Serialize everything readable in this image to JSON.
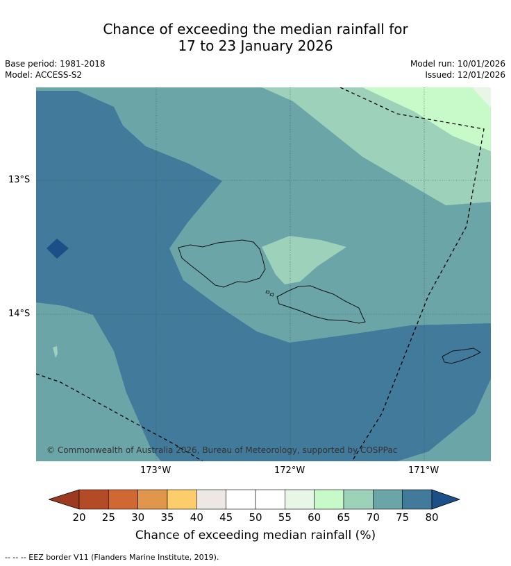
{
  "title": {
    "line1": "Chance of exceeding the median rainfall for",
    "line2": "17 to 23 January 2026"
  },
  "meta": {
    "base_period": "Base period: 1981-2018",
    "model": "Model: ACCESS-S2",
    "model_run": "Model run: 10/01/2026",
    "issued": "Issued: 12/01/2026"
  },
  "axes": {
    "lat_labels": [
      "13°S",
      "14°S"
    ],
    "lon_labels": [
      "173°W",
      "172°W",
      "171°W"
    ]
  },
  "copyright": "© Commonwealth of Australia 2026, Bureau of Meteorology, supported by COSPPac",
  "colorbar": {
    "title": "Chance of exceeding median rainfall (%)",
    "ticks": [
      "20",
      "25",
      "30",
      "35",
      "40",
      "45",
      "50",
      "55",
      "60",
      "65",
      "70",
      "75",
      "80"
    ],
    "colors": [
      "#9c3a1f",
      "#b34b27",
      "#cf6833",
      "#e0974c",
      "#fdcd6b",
      "#ede8e4",
      "#ffffff",
      "#ffffff",
      "#e8f6e8",
      "#c8f9c8",
      "#9dd1ba",
      "#6ca5a7",
      "#417a9a",
      "#1c4f88"
    ],
    "under_color": "#9c3a1f",
    "over_color": "#1c4f88"
  },
  "legend_colors": {
    "c70_75": "#6ca5a7",
    "c75_80": "#417a9a",
    "c80": "#1c4f88",
    "c65_70": "#9dd1ba",
    "c60_65": "#c8f9c8",
    "c55_60": "#e8f6e8"
  },
  "footnote": "--  --  -- EEZ border V11 (Flanders Marine Institute, 2019)."
}
